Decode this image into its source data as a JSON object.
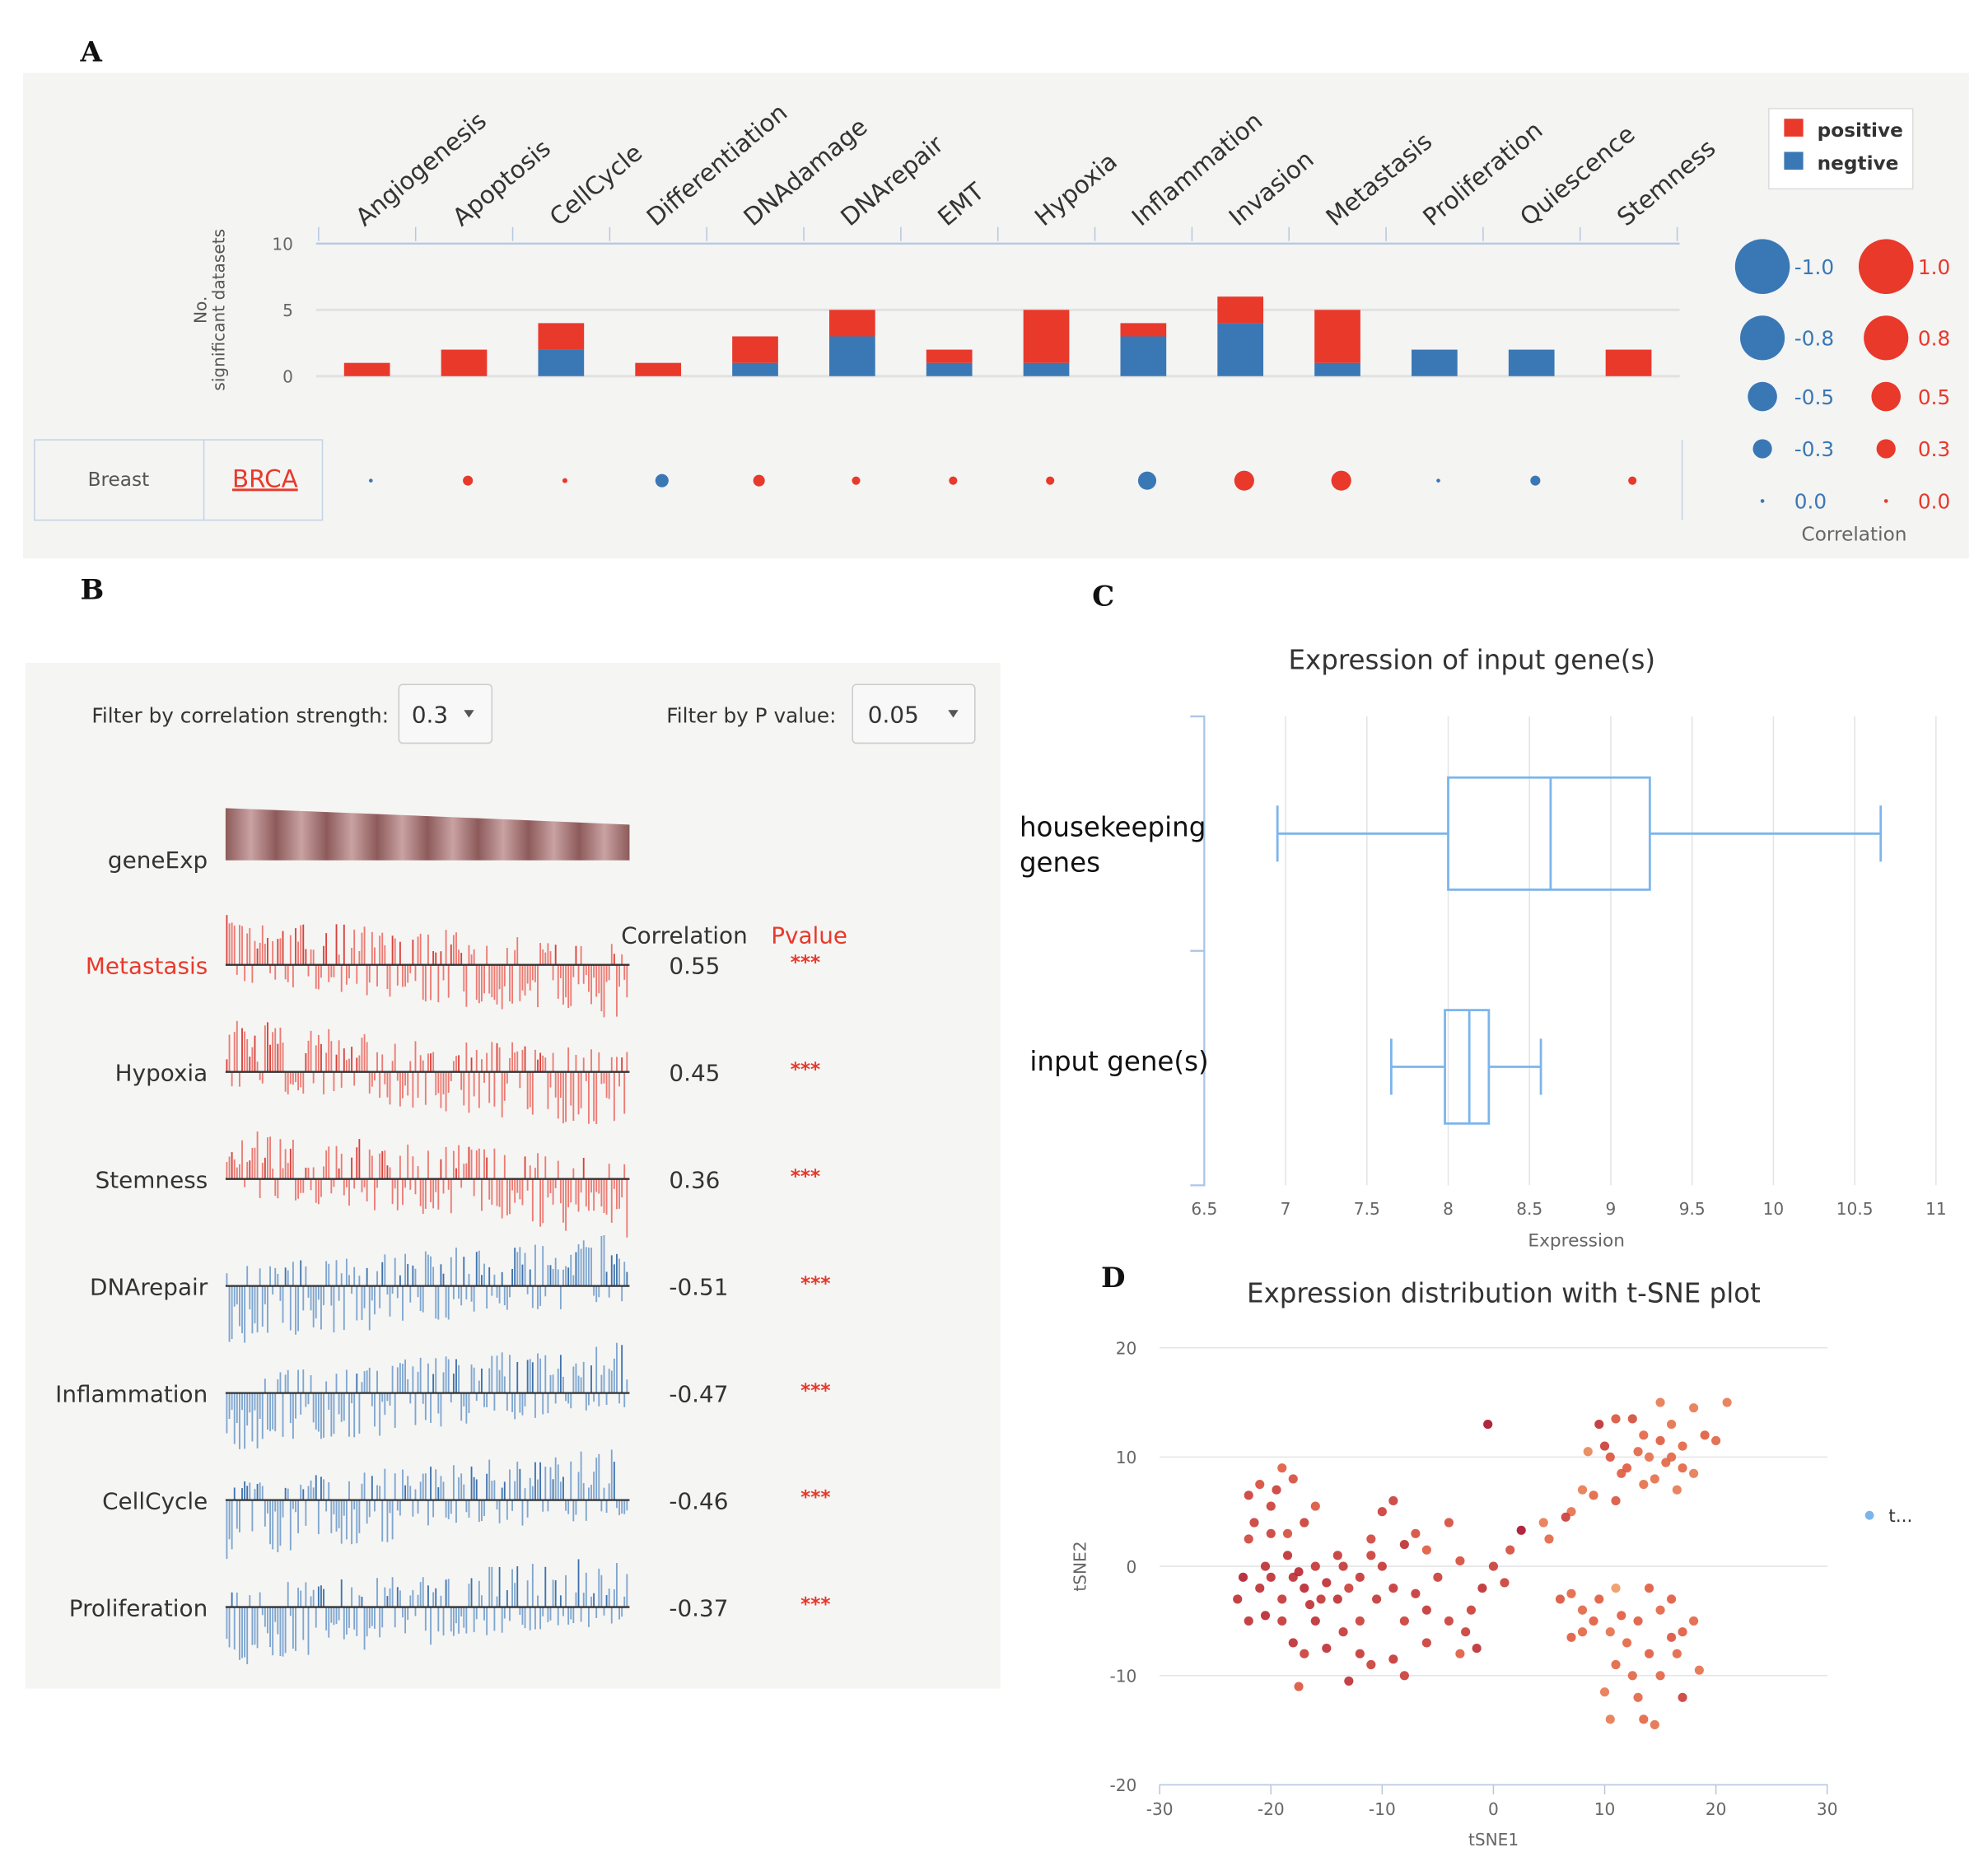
{
  "panel_labels": [
    "A",
    "B",
    "C",
    "D"
  ],
  "chart_data": [
    {
      "type": "bar",
      "panel": "A",
      "stacked": true,
      "categories": [
        "Angiogenesis",
        "Apoptosis",
        "CellCycle",
        "Differentiation",
        "DNAdamage",
        "DNArepair",
        "EMT",
        "Hypoxia",
        "Inflammation",
        "Invasion",
        "Metastasis",
        "Proliferation",
        "Quiescence",
        "Stemness"
      ],
      "series": [
        {
          "name": "negtive",
          "color": "#3a78b5",
          "values": [
            0,
            0,
            2,
            0,
            1,
            3,
            1,
            1,
            3,
            4,
            1,
            2,
            2,
            0
          ]
        },
        {
          "name": "positive",
          "color": "#e8392b",
          "values": [
            1,
            2,
            2,
            1,
            2,
            2,
            1,
            4,
            1,
            2,
            4,
            0,
            0,
            2
          ]
        }
      ],
      "ylabel": "No. significant datasets",
      "yticks": [
        "0",
        "5",
        "10"
      ],
      "ylim": [
        0,
        10
      ],
      "legend": [
        "positive",
        "negtive"
      ],
      "table": {
        "tissue": "Breast",
        "cancer": "BRCA",
        "correlations": [
          -0.05,
          0.3,
          0.15,
          -0.4,
          0.35,
          0.25,
          0.25,
          0.25,
          -0.55,
          0.6,
          0.6,
          -0.05,
          -0.3,
          0.25
        ]
      },
      "size_legend": {
        "title": "Correlation",
        "negative_labels": [
          "-1.0",
          "-0.8",
          "-0.5",
          "-0.3",
          "0.0"
        ],
        "positive_labels": [
          "1.0",
          "0.8",
          "0.5",
          "0.3",
          "0.0"
        ],
        "values": [
          1.0,
          0.8,
          0.5,
          0.3,
          0.0
        ]
      }
    },
    {
      "type": "bar",
      "panel": "B",
      "filters": {
        "strength_label": "Filter by correlation strength:",
        "strength_value": "0.3",
        "p_label": "Filter by P value:",
        "p_value": "0.05"
      },
      "reference_label": "geneExp",
      "headers": {
        "correlation": "Correlation",
        "pvalue": "Pvalue"
      },
      "rows": [
        {
          "name": "Metastasis",
          "correlation": "0.55",
          "pvalue": "***",
          "sign": "positive",
          "highlight": true
        },
        {
          "name": "Hypoxia",
          "correlation": "0.45",
          "pvalue": "***",
          "sign": "positive"
        },
        {
          "name": "Stemness",
          "correlation": "0.36",
          "pvalue": "***",
          "sign": "positive"
        },
        {
          "name": "DNArepair",
          "correlation": "-0.51",
          "pvalue": "***",
          "sign": "negative"
        },
        {
          "name": "Inflammation",
          "correlation": "-0.47",
          "pvalue": "***",
          "sign": "negative"
        },
        {
          "name": "CellCycle",
          "correlation": "-0.46",
          "pvalue": "***",
          "sign": "negative"
        },
        {
          "name": "Proliferation",
          "correlation": "-0.37",
          "pvalue": "***",
          "sign": "negative"
        }
      ]
    },
    {
      "type": "box",
      "panel": "C",
      "title": "Expression of input gene(s)",
      "xlabel": "Expression",
      "xlim": [
        6.5,
        11
      ],
      "xticks": [
        "6.5",
        "7",
        "7.5",
        "8",
        "8.5",
        "9",
        "9.5",
        "10",
        "10.5",
        "11"
      ],
      "categories": [
        {
          "label_lines": [
            "housekeeping",
            "genes"
          ],
          "min": 6.95,
          "q1": 8.0,
          "median": 8.63,
          "q3": 9.24,
          "max": 10.66
        },
        {
          "label_lines": [
            "input gene(s)"
          ],
          "min": 7.65,
          "q1": 7.98,
          "median": 8.13,
          "q3": 8.25,
          "max": 8.57
        }
      ],
      "color": "#7cb5ec"
    },
    {
      "type": "scatter",
      "panel": "D",
      "title": "Expression distribution with t-SNE plot",
      "xlabel": "tSNE1",
      "ylabel": "tSNE2",
      "xlim": [
        -30,
        30
      ],
      "ylim": [
        -20,
        20
      ],
      "xticks": [
        "-30",
        "-20",
        "-10",
        "0",
        "10",
        "20",
        "30"
      ],
      "yticks": [
        "20",
        "10",
        "0",
        "-10",
        "-20"
      ],
      "legend": "t...",
      "legend_color": "#7cb5ec",
      "color_scale": [
        "#f7c27a",
        "#e05a3e",
        "#a8102a"
      ],
      "points": [
        [
          -22,
          6.5,
          0.7
        ],
        [
          -21,
          7.5,
          0.6
        ],
        [
          -19,
          9,
          0.5
        ],
        [
          -18,
          8,
          0.6
        ],
        [
          -19.5,
          7,
          0.7
        ],
        [
          -20,
          5.5,
          0.7
        ],
        [
          -21.5,
          4,
          0.7
        ],
        [
          -20,
          3,
          0.7
        ],
        [
          -22,
          2.5,
          0.65
        ],
        [
          -18.5,
          3,
          0.6
        ],
        [
          -17,
          4,
          0.7
        ],
        [
          -16,
          5.5,
          0.55
        ],
        [
          -22.5,
          -1,
          0.9
        ],
        [
          -21,
          -2,
          0.8
        ],
        [
          -20,
          -1,
          0.8
        ],
        [
          -19,
          -3,
          0.75
        ],
        [
          -18,
          -1,
          0.8
        ],
        [
          -17,
          -2,
          0.85
        ],
        [
          -16,
          0,
          0.75
        ],
        [
          -15,
          -1.5,
          0.8
        ],
        [
          -14,
          -3,
          0.8
        ],
        [
          -13,
          -2,
          0.7
        ],
        [
          -12,
          -1,
          0.75
        ],
        [
          -11,
          1,
          0.7
        ],
        [
          -10,
          0,
          0.75
        ],
        [
          -23,
          -3,
          0.8
        ],
        [
          -22,
          -5,
          0.8
        ],
        [
          -20.5,
          -4.5,
          0.85
        ],
        [
          -19,
          -5,
          0.75
        ],
        [
          -18,
          -7,
          0.8
        ],
        [
          -17,
          -8,
          0.7
        ],
        [
          -15,
          -7.5,
          0.8
        ],
        [
          -13.5,
          -6,
          0.75
        ],
        [
          -12,
          -8,
          0.75
        ],
        [
          -11,
          -9,
          0.7
        ],
        [
          -13,
          -10.5,
          0.8
        ],
        [
          -17.5,
          -11,
          0.55
        ],
        [
          -10,
          5,
          0.7
        ],
        [
          -9,
          6,
          0.7
        ],
        [
          -11,
          2.5,
          0.65
        ],
        [
          -8,
          2,
          0.8
        ],
        [
          -7,
          3,
          0.6
        ],
        [
          -6,
          1.5,
          0.5
        ],
        [
          -4,
          4,
          0.6
        ],
        [
          -3,
          0.5,
          0.6
        ],
        [
          -5,
          -1,
          0.7
        ],
        [
          -7,
          -2.5,
          0.75
        ],
        [
          -9,
          -2,
          0.75
        ],
        [
          -8,
          -5,
          0.7
        ],
        [
          -6,
          -7,
          0.7
        ],
        [
          -4,
          -5,
          0.7
        ],
        [
          -2,
          -4,
          0.7
        ],
        [
          -1,
          -2,
          0.8
        ],
        [
          1,
          -1.5,
          0.7
        ],
        [
          0,
          0,
          0.7
        ],
        [
          -3,
          -8,
          0.5
        ],
        [
          -9,
          -8.5,
          0.75
        ],
        [
          -8,
          -10,
          0.7
        ],
        [
          -1.5,
          -7.5,
          0.8
        ],
        [
          -16,
          -5,
          0.8
        ],
        [
          -14,
          1,
          0.75
        ],
        [
          -17.5,
          -0.5,
          0.85
        ],
        [
          -15.5,
          -3,
          0.75
        ],
        [
          -12,
          -5,
          0.7
        ],
        [
          -6,
          -4,
          0.75
        ],
        [
          -2.5,
          -6,
          0.7
        ],
        [
          1.5,
          1.5,
          0.6
        ],
        [
          -20.5,
          0,
          0.8
        ],
        [
          -18.5,
          1,
          0.8
        ],
        [
          -16.5,
          -3.5,
          0.8
        ],
        [
          -13.5,
          0,
          0.75
        ],
        [
          -10.5,
          -3,
          0.75
        ],
        [
          4.5,
          4,
          0.35
        ],
        [
          5,
          2.5,
          0.45
        ],
        [
          7,
          5,
          0.4
        ],
        [
          8,
          7,
          0.35
        ],
        [
          6.5,
          4.5,
          0.7
        ],
        [
          9,
          6.5,
          0.45
        ],
        [
          11,
          6,
          0.55
        ],
        [
          8.5,
          10.5,
          0.3
        ],
        [
          9.5,
          13,
          0.8
        ],
        [
          10,
          11,
          0.7
        ],
        [
          11,
          13.5,
          0.55
        ],
        [
          12.5,
          13.5,
          0.6
        ],
        [
          13.5,
          12,
          0.45
        ],
        [
          14,
          10,
          0.4
        ],
        [
          15,
          15,
          0.35
        ],
        [
          16,
          13,
          0.4
        ],
        [
          17,
          11,
          0.45
        ],
        [
          18,
          14.5,
          0.35
        ],
        [
          19,
          12,
          0.5
        ],
        [
          20,
          11.5,
          0.45
        ],
        [
          21,
          15,
          0.35
        ],
        [
          12,
          9,
          0.5
        ],
        [
          13,
          10.5,
          0.45
        ],
        [
          14.5,
          8,
          0.4
        ],
        [
          15.5,
          9.5,
          0.45
        ],
        [
          16.5,
          7,
          0.35
        ],
        [
          17,
          9,
          0.45
        ],
        [
          18,
          8.5,
          0.35
        ],
        [
          11.5,
          8.5,
          0.5
        ],
        [
          13.5,
          7.5,
          0.4
        ],
        [
          15,
          11.5,
          0.5
        ],
        [
          16,
          10,
          0.45
        ],
        [
          10.5,
          10,
          0.55
        ],
        [
          6,
          -3,
          0.55
        ],
        [
          7,
          -2.5,
          0.45
        ],
        [
          8,
          -4,
          0.45
        ],
        [
          9,
          -5,
          0.5
        ],
        [
          9.5,
          -3,
          0.5
        ],
        [
          10.5,
          -6,
          0.4
        ],
        [
          11,
          -2,
          0.2
        ],
        [
          12,
          -7,
          0.45
        ],
        [
          13,
          -5,
          0.5
        ],
        [
          14,
          -8,
          0.5
        ],
        [
          15,
          -4,
          0.45
        ],
        [
          16,
          -3,
          0.5
        ],
        [
          17,
          -6,
          0.5
        ],
        [
          18,
          -5,
          0.45
        ],
        [
          16.5,
          -8,
          0.45
        ],
        [
          15,
          -10,
          0.45
        ],
        [
          17,
          -12,
          0.7
        ],
        [
          18.5,
          -9.5,
          0.4
        ],
        [
          12.5,
          -10,
          0.45
        ],
        [
          13,
          -12,
          0.45
        ],
        [
          13.5,
          -14,
          0.45
        ],
        [
          14.5,
          -14.5,
          0.4
        ],
        [
          10.5,
          -14,
          0.35
        ],
        [
          10,
          -11.5,
          0.35
        ],
        [
          11,
          -9,
          0.45
        ],
        [
          8,
          -6,
          0.45
        ],
        [
          7,
          -6.5,
          0.5
        ],
        [
          11.5,
          -4.5,
          0.5
        ],
        [
          14,
          -2,
          0.5
        ],
        [
          16,
          -6.5,
          0.55
        ],
        [
          -0.5,
          13,
          1.0
        ],
        [
          2.5,
          3.3,
          1.0
        ]
      ]
    }
  ]
}
